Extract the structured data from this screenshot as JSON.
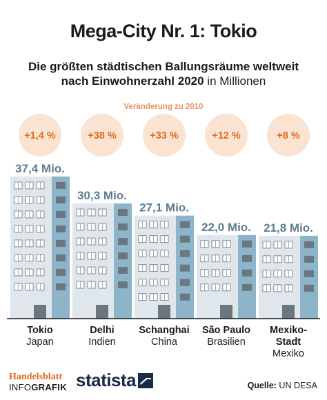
{
  "header": {
    "title": "Mega-City Nr. 1: Tokio",
    "subtitle_line1": "Die größten städtischen Ballungsräume weltweit",
    "subtitle_line2_bold": "nach Einwohnerzahl 2020",
    "subtitle_line2_light": "in Millionen",
    "change_label": "Veränderung zu 2010"
  },
  "chart_data": {
    "type": "bar",
    "categories": [
      "Tokio",
      "Delhi",
      "Schanghai",
      "São Paulo",
      "Mexiko-Stadt"
    ],
    "category_lines": [
      [
        "Tokio"
      ],
      [
        "Delhi"
      ],
      [
        "Schanghai"
      ],
      [
        "São Paulo"
      ],
      [
        "Mexiko-",
        "Stadt"
      ]
    ],
    "countries": [
      "Japan",
      "Indien",
      "China",
      "Brasilien",
      "Mexiko"
    ],
    "values": [
      37.4,
      30.3,
      27.1,
      22.0,
      21.8
    ],
    "value_labels": [
      "37,4 Mio.",
      "30,3 Mio.",
      "27,1 Mio.",
      "22,0 Mio.",
      "21,8 Mio."
    ],
    "changes": [
      "+1,4 %",
      "+38 %",
      "+33 %",
      "+12 %",
      "+8 %"
    ],
    "ylim": [
      0,
      40
    ]
  },
  "colors": {
    "building_light": "#dfe6ec",
    "building_accent": "#8db4c8",
    "window_dark": "#6b7780",
    "value_label": "#5d7d90",
    "bubble": "#fbe3d2",
    "bubble_text": "#e06a1e",
    "baseline": "#1a1a1a"
  },
  "footer": {
    "brand_top": "Handelsblatt",
    "brand_bottom_light": "INFO",
    "brand_bottom_bold": "GRAFIK",
    "statista": "statista",
    "source_label": "Quelle:",
    "source_value": "UN DESA"
  }
}
